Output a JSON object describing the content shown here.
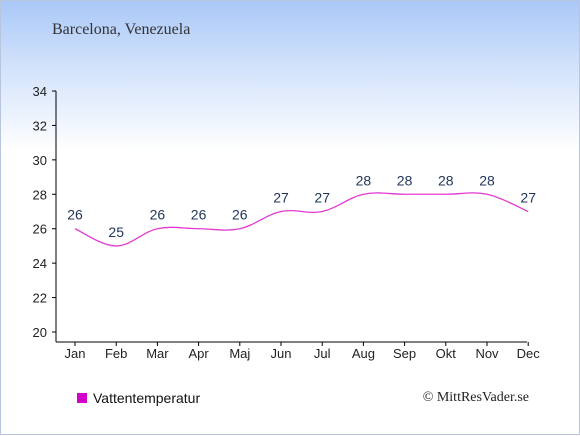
{
  "title": "Barcelona, Venezuela",
  "legend_label": "Vattentemperatur",
  "copyright": "© MittResVader.se",
  "colors": {
    "series": "#e23ad0",
    "swatch": "#d200c8",
    "value_text": "#1f3558"
  },
  "chart_data": {
    "type": "line",
    "categories": [
      "Jan",
      "Feb",
      "Mar",
      "Apr",
      "Maj",
      "Jun",
      "Jul",
      "Aug",
      "Sep",
      "Okt",
      "Nov",
      "Dec"
    ],
    "series": [
      {
        "name": "Vattentemperatur",
        "values": [
          26,
          25,
          26,
          26,
          26,
          27,
          27,
          28,
          28,
          28,
          28,
          27
        ]
      }
    ],
    "ylim": [
      20,
      34
    ],
    "yticks": [
      20,
      22,
      24,
      26,
      28,
      30,
      32,
      34
    ],
    "grid": false,
    "legend": "bottom-left"
  }
}
